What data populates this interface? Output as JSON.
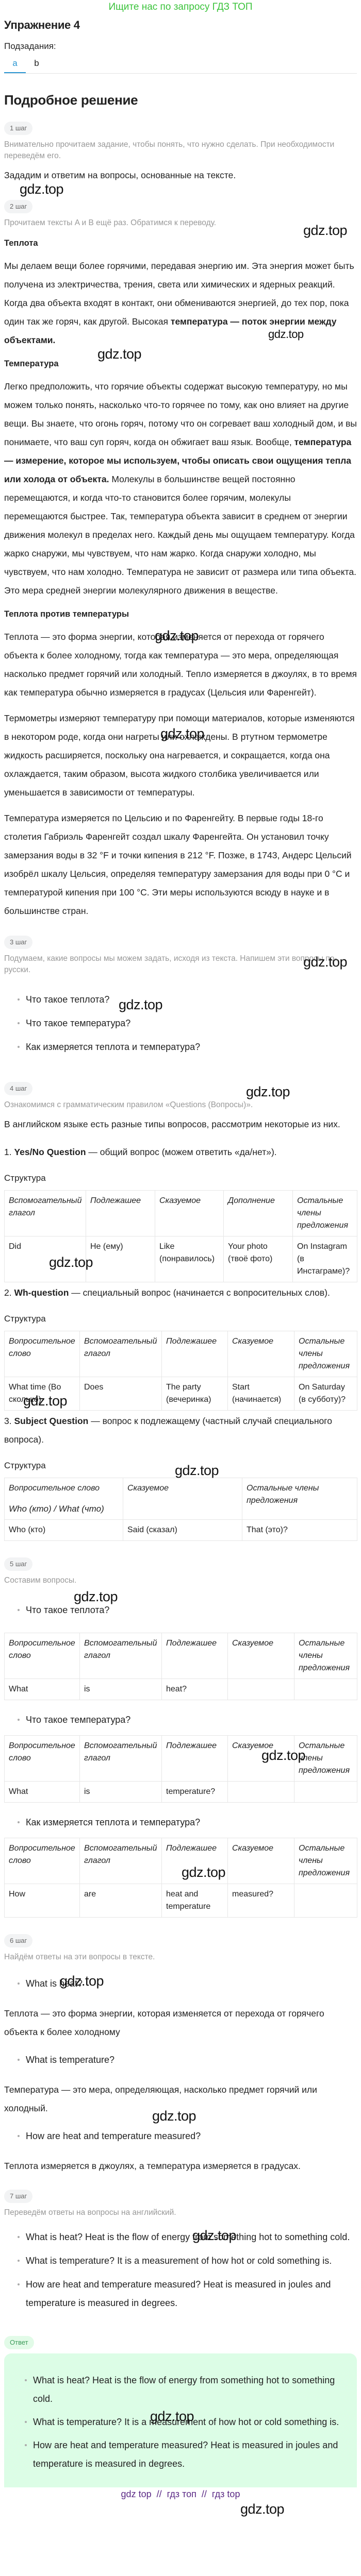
{
  "banner": "Ищите нас по запросу ГДЗ ТОП",
  "title": "Упражнение 4",
  "subtasks_label": "Подзадания:",
  "tabs": [
    {
      "label": "a",
      "active": true
    },
    {
      "label": "b",
      "active": false
    }
  ],
  "solution_heading": "Подробное решение",
  "watermark": "gdz.top",
  "colors": {
    "banner": "#3cc33c",
    "tab_active": "#2a96d2",
    "answer_bg": "#dcfde6",
    "answer_badge": "#3b9a58",
    "footer": "#5b2a86"
  },
  "steps": [
    {
      "badge": "1 шаг",
      "hint": "Внимательно прочитаем задание, чтобы понять, что нужно сделать. При необходимости переведём его.",
      "text": "Зададим и ответим на вопросы, основанные на тексте."
    },
    {
      "badge": "2 шаг",
      "hint": "Прочитаем тексты A и B ещё раз. Обратимся к переводу.",
      "heat_title": "Теплота",
      "heat_text": "Мы делаем вещи более горячими, передавая энергию им. Эта энергия может быть получена из электричества, трения, света или химических и ядерных реакций. Когда два объекта входят в контакт, они обмениваются энергией, до тех пор, пока один так же горяч, как другой. Высокая ",
      "heat_bold": "температура — поток энергии между объектами.",
      "temp_title": "Температура",
      "temp_text1": "Легко предположить, что горячие объекты содержат высокую температуру, но мы можем только понять, насколько что-то горячее по тому, как оно влияет на другие вещи. Вы знаете, что огонь горяч, потому что он согревает ваш холодный дом, и вы понимаете, что ваш суп горяч, когда он обжигает ваш язык. Вообще, ",
      "temp_bold": "температура — измерение, которое мы используем, чтобы описать свои ощущения тепла или холода от объекта.",
      "temp_text2": " Молекулы в большинстве вещей постоянно перемещаются, и когда что-то становится более горячим, молекулы перемещаются быстрее. Так, температура объекта зависит в среднем от энергии движения молекул в пределах него. Каждый день мы ощущаем температуру. Когда жарко снаружи, мы чувствуем, что нам жарко. Когда снаружи холодно, мы чувствуем, что нам холодно. Температура не зависит от размера или типа объекта. Это мера средней энергии молекулярного движения в веществе.",
      "vs_title": "Теплота против температуры",
      "vs_p1": "Теплота — это форма энергии, которая изменяется от перехода от горячего объекта к более холодному, тогда как температура — это мера, определяющая насколько предмет горячий или холодный. Тепло измеряется в джоулях, в то время как температура обычно измеряется в градусах (Цельсия или Фаренгейт).",
      "vs_p2": "Термометры измеряют температуру при помощи материалов, которые изменяются в некотором роде, когда они нагреты или охлаждены. В ртутном термометре жидкость расширяется, поскольку она нагревается, и сокращается, когда она охлаждается, таким образом, высота жидкого столбика увеличивается или уменьшается в зависимости от температуры.",
      "vs_p3": "Температура измеряется по Цельсию и по Фаренгейту. В первые годы 18-го столетия Габриэль Фаренгейт создал шкалу Фаренгейта. Он установил точку замерзания воды в 32 °F и точки кипения в 212 °F. Позже, в 1743, Андерс Цельсий изобрёл шкалу Цельсия, определяя температуру замерзания для воды при 0 °C и температурой кипения при 100 °C. Эти меры используются всюду в науке и в большинстве стран."
    },
    {
      "badge": "3 шаг",
      "hint": "Подумаем, какие вопросы мы можем задать, исходя из текста. Напишем эти вопросы по-русски.",
      "questions": [
        "Что такое теплота?",
        "Что такое температура?",
        "Как измеряется теплота и температура?"
      ]
    },
    {
      "badge": "4 шаг",
      "hint": "Ознакомимся с грамматическим правилом «Questions (Вопросы)».",
      "intro": "В английском языке есть разные типы вопросов, рассмотрим некоторые из них.",
      "structure_label": "Структура",
      "types": [
        {
          "num": "1. ",
          "name": "Yes/No Question",
          "desc": " — общий вопрос (можем ответить «да/нет»).",
          "table": {
            "head": [
              "Вспомогательный глагол",
              "Подлежашее",
              "Сказуемое",
              "Дополнение",
              "Остальные члены предложения"
            ],
            "row": [
              "Did",
              "He (ему)",
              "Like (понравилось)",
              "Your photo (твоё фото)",
              "On Instagram (в Инстаграме)?"
            ]
          }
        },
        {
          "num": "2. ",
          "name": "Wh-question",
          "desc": " — специальный вопрос (начинается с вопросительных слов).",
          "table": {
            "head": [
              "Вопросительное слово",
              "Вспомогательный глагол",
              "Подлежашее",
              "Сказуемое",
              "Остальные члены предложения"
            ],
            "row": [
              "What time (Во сколько)",
              "Does",
              "The party (вечеринка)",
              "Start (начинается)",
              "On Saturday (в субботу)?"
            ]
          }
        },
        {
          "num": "3. ",
          "name": "Subject Question",
          "desc": " — вопрос к подлежащему (частный случай специального вопроса).",
          "table": {
            "head": [
              "Вопросительное слово",
              "Сказуемое",
              "Остальные члены предложения"
            ],
            "head_sub": "Who (кто) / What (что)",
            "row": [
              "Who (кто)",
              "Said (сказал)",
              "That (это)?"
            ]
          }
        }
      ]
    },
    {
      "badge": "5 шаг",
      "hint": "Составим вопросы.",
      "head": [
        "Вопросительное слово",
        "Вспомогательный глагол",
        "Подлежашее",
        "Сказуемое",
        "Остальные члены предложения"
      ],
      "items": [
        {
          "question": "Что такое теплота?",
          "row": [
            "What",
            "is",
            "heat?",
            "",
            ""
          ]
        },
        {
          "question": "Что такое температура?",
          "row": [
            "What",
            "is",
            "temperature?",
            "",
            ""
          ]
        },
        {
          "question": "Как измеряется теплота и температура?",
          "row": [
            "How",
            "are",
            "heat and temperature",
            "measured?",
            ""
          ]
        }
      ]
    },
    {
      "badge": "6 шаг",
      "hint": "Найдём ответы на эти вопросы в тексте.",
      "items": [
        {
          "question": "What is heat?",
          "answer": "Теплота — это форма энергии, которая изменяется от перехода от горячего объекта к более холодному"
        },
        {
          "question": "What is temperature?",
          "answer": "Температура — это мера, определяющая, насколько предмет горячий или холодный."
        },
        {
          "question": "How are heat and temperature measured?",
          "answer": "Теплота измеряется в джоулях, а температура измеряется в градусах."
        }
      ]
    },
    {
      "badge": "7 шаг",
      "hint": "Переведём ответы на вопросы на английский.",
      "items": [
        "What is heat? Heat is the flow of energy from something hot to something cold.",
        "What is temperature? It is a measurement of how hot or cold something is.",
        "How are heat and temperature measured? Heat is measured in joules and temperature is measured in degrees."
      ]
    }
  ],
  "answer": {
    "badge": "Ответ",
    "items": [
      "What is heat? Heat is the flow of energy from something hot to something cold.",
      "What is temperature? It is a measurement of how hot or cold something is.",
      "How are heat and temperature measured? Heat is measured in joules and temperature is measured in degrees."
    ]
  },
  "footer": "gdz top  //  гдз топ  //  гдз top"
}
